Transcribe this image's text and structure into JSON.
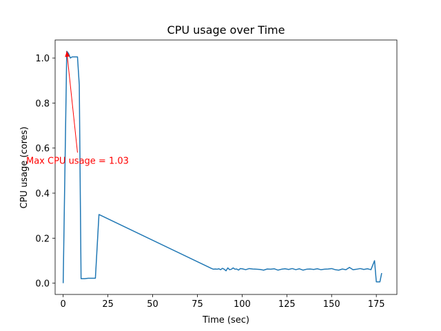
{
  "chart_data": {
    "type": "line",
    "title": "CPU usage over Time",
    "xlabel": "Time (sec)",
    "ylabel": "CPU usage (cores)",
    "xlim": [
      -4.5,
      186.5
    ],
    "ylim": [
      -0.05,
      1.08
    ],
    "xticks": [
      0,
      25,
      50,
      75,
      100,
      125,
      150,
      175
    ],
    "yticks": [
      0.0,
      0.2,
      0.4,
      0.6,
      0.8,
      1.0
    ],
    "xtick_labels": [
      "0",
      "25",
      "50",
      "75",
      "100",
      "125",
      "150",
      "175"
    ],
    "ytick_labels": [
      "0.0",
      "0.2",
      "0.4",
      "0.6",
      "0.8",
      "1.0"
    ],
    "grid": false,
    "line_color": "#1f77b4",
    "annotation_color": "#ff0000",
    "series": [
      {
        "x": [
          0,
          2,
          3,
          4,
          5,
          6,
          7,
          8,
          9,
          10,
          12,
          14,
          16,
          18,
          20,
          83,
          84,
          85,
          86,
          87,
          88,
          89,
          90,
          91,
          92,
          93,
          94,
          95,
          96,
          97,
          98,
          99,
          100,
          102,
          104,
          106,
          108,
          110,
          112,
          114,
          116,
          118,
          120,
          122,
          124,
          126,
          128,
          130,
          132,
          134,
          136,
          138,
          140,
          142,
          144,
          146,
          148,
          150,
          152,
          154,
          156,
          158,
          160,
          162,
          164,
          166,
          168,
          170,
          172,
          174,
          175,
          176,
          177,
          178
        ],
        "y": [
          0.0,
          1.03,
          1.02,
          1.0,
          1.005,
          1.005,
          1.005,
          1.005,
          0.88,
          0.02,
          0.02,
          0.022,
          0.022,
          0.022,
          0.305,
          0.065,
          0.062,
          0.063,
          0.062,
          0.064,
          0.06,
          0.066,
          0.062,
          0.055,
          0.068,
          0.06,
          0.062,
          0.068,
          0.062,
          0.063,
          0.058,
          0.065,
          0.064,
          0.06,
          0.065,
          0.063,
          0.062,
          0.061,
          0.058,
          0.063,
          0.062,
          0.064,
          0.058,
          0.062,
          0.064,
          0.061,
          0.065,
          0.06,
          0.064,
          0.058,
          0.062,
          0.063,
          0.061,
          0.064,
          0.06,
          0.062,
          0.063,
          0.065,
          0.06,
          0.058,
          0.063,
          0.06,
          0.07,
          0.06,
          0.062,
          0.065,
          0.061,
          0.064,
          0.06,
          0.1,
          0.006,
          0.006,
          0.006,
          0.045
        ]
      }
    ],
    "annotation": {
      "text": "Max CPU usage = 1.03",
      "xy": [
        2,
        1.03
      ],
      "xytext": [
        8,
        0.58
      ]
    }
  }
}
